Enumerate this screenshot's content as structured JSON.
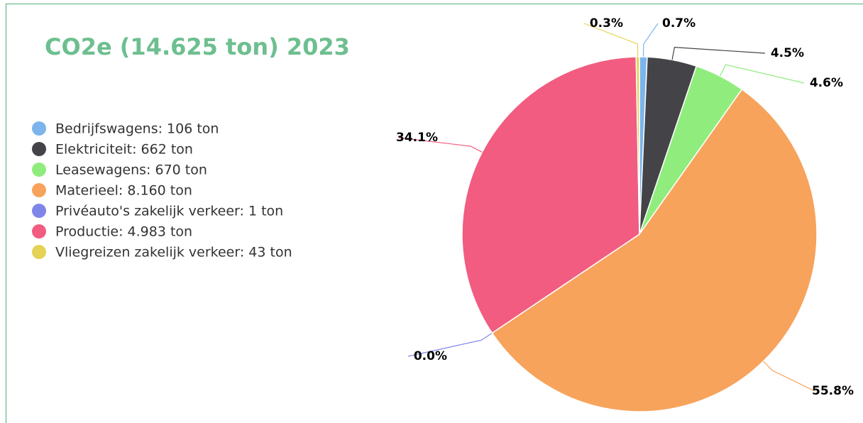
{
  "chart_data": {
    "type": "pie",
    "title": "CO2e (14.625 ton) 2023",
    "series": [
      {
        "name": "Bedrijfswagens: 106 ton",
        "color": "#7cb5ec"
      },
      {
        "name": "Elektriciteit: 662 ton",
        "color": "#434348"
      },
      {
        "name": "Leasewagens: 670 ton",
        "color": "#90ed7d"
      },
      {
        "name": "Materieel: 8.160 ton",
        "color": "#f7a35c"
      },
      {
        "name": "Privéauto's zakelijk verkeer: 1 ton",
        "color": "#8085e9"
      },
      {
        "name": "Productie: 4.983 ton",
        "color": "#f15c80"
      },
      {
        "name": "Vliegreizen zakelijk verkeer: 43 ton",
        "color": "#e4d354"
      }
    ],
    "values": [
      0.7,
      4.5,
      4.6,
      55.8,
      0.0,
      34.1,
      0.3
    ],
    "value_labels": [
      "0.7%",
      "4.5%",
      "4.6%",
      "55.8%",
      "0.0%",
      "34.1%",
      "0.3%"
    ],
    "legend": "left"
  }
}
